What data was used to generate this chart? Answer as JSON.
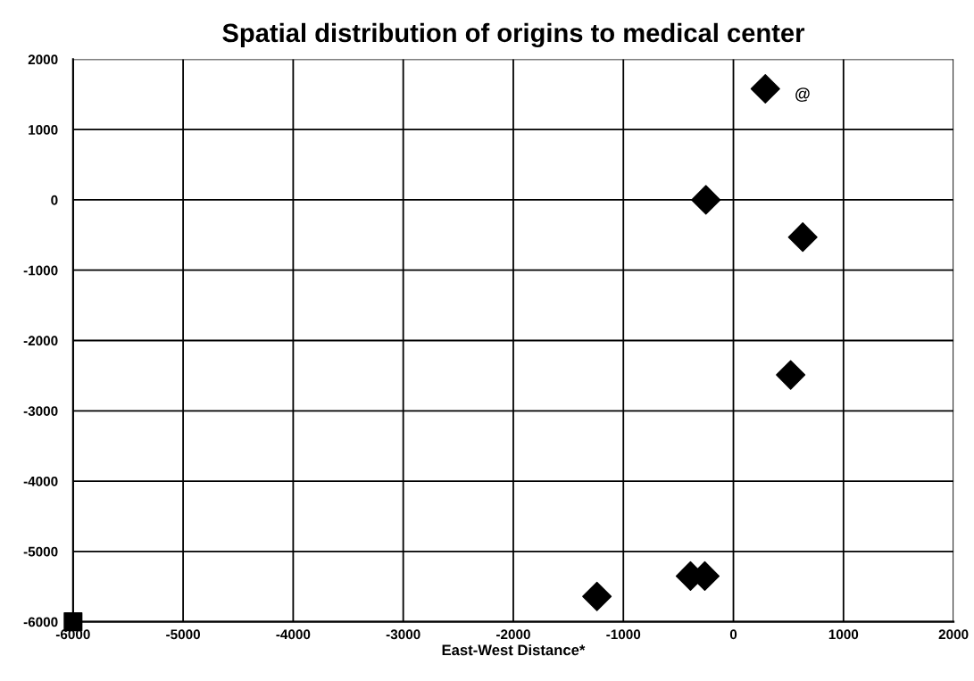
{
  "chart_data": {
    "type": "scatter",
    "title": "Spatial distribution of origins to medical center",
    "xlabel": "East-West Distance*",
    "series": [
      {
        "color": "#000000",
        "marker": "diamond",
        "x": [
          290,
          -250,
          630,
          520,
          -1240,
          -390,
          -260
        ],
        "values": [
          1580,
          0,
          -530,
          -2490,
          -5640,
          -5350,
          -5350
        ]
      },
      {
        "color": "#000000",
        "marker": "square",
        "x": [
          -6000
        ],
        "values": [
          -6000
        ]
      }
    ],
    "annotations": [
      "@"
    ],
    "xlim": [
      -6000,
      2000
    ],
    "xticks": [
      -6000,
      -5000,
      -4000,
      -3000,
      -2000,
      -1000,
      0,
      1000,
      2000
    ],
    "ylim": [
      -6000,
      2000
    ],
    "yticks": [
      -6000,
      -5000,
      -4000,
      -3000,
      -2000,
      -1000,
      0,
      1000,
      2000
    ],
    "grid": true,
    "legend": false
  }
}
